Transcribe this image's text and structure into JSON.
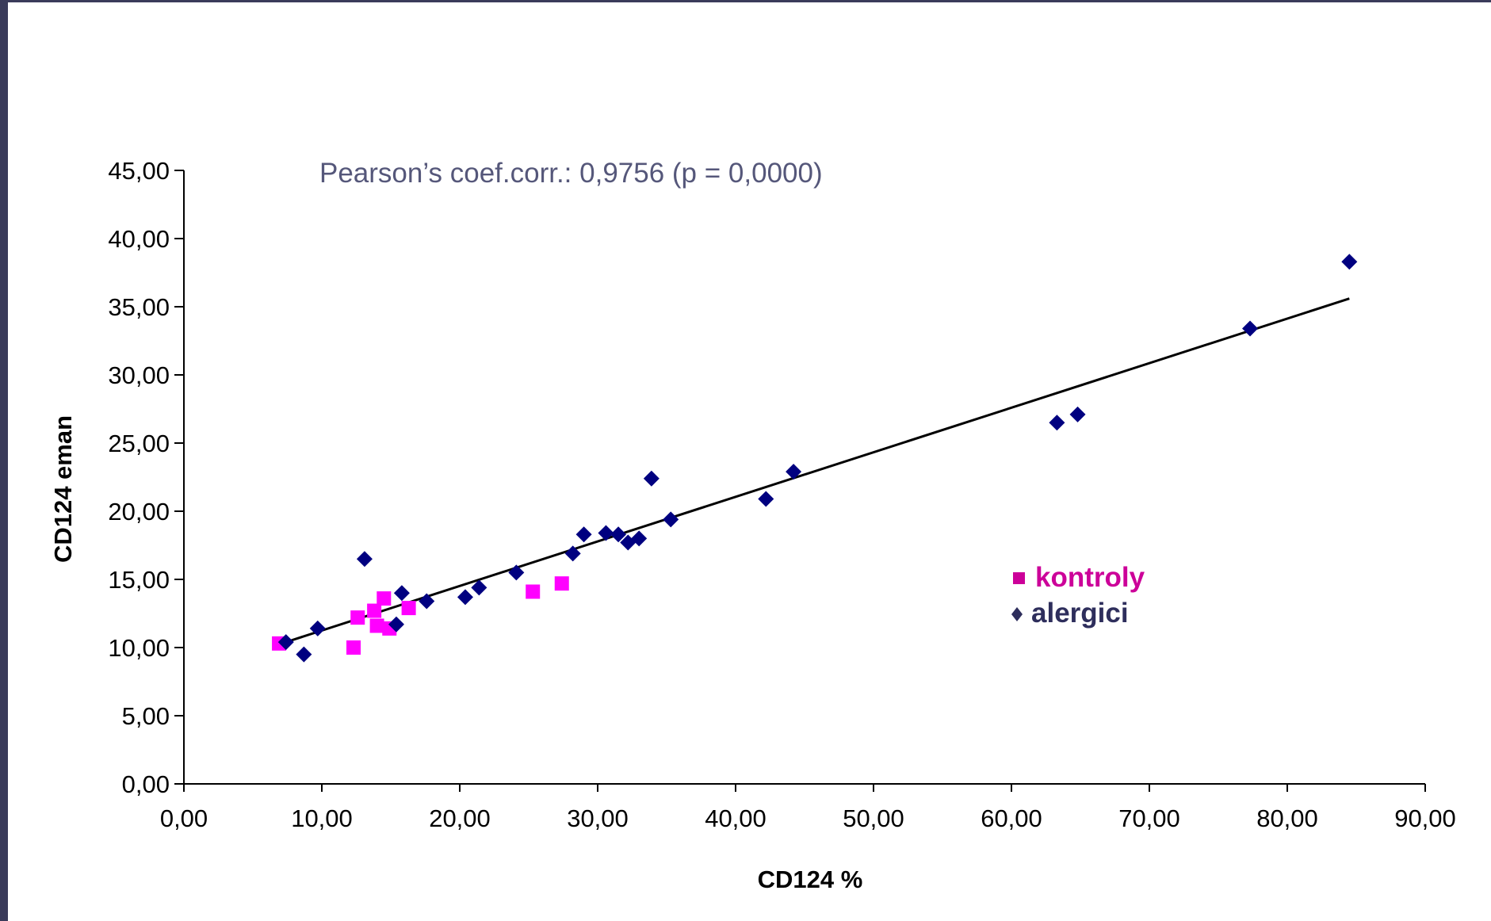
{
  "chart_data": {
    "type": "scatter",
    "annotation": "Pearson’s coef.corr.: 0,9756 (p = 0,0000)",
    "xlabel": "CD124  %",
    "ylabel": "CD124 eman",
    "xlim": [
      0,
      90
    ],
    "ylim": [
      0,
      45
    ],
    "x_ticks": [
      "0,00",
      "10,00",
      "20,00",
      "30,00",
      "40,00",
      "50,00",
      "60,00",
      "70,00",
      "80,00",
      "90,00"
    ],
    "y_ticks": [
      "0,00",
      "5,00",
      "10,00",
      "15,00",
      "20,00",
      "25,00",
      "30,00",
      "35,00",
      "40,00",
      "45,00"
    ],
    "grid": false,
    "legend_position": "right",
    "series": [
      {
        "name": "kontroly",
        "marker": "square",
        "color": "#ff00ff",
        "legend_color": "#cc0099",
        "points": [
          [
            6.9,
            10.3
          ],
          [
            12.3,
            10.0
          ],
          [
            12.6,
            12.2
          ],
          [
            13.8,
            12.7
          ],
          [
            14.0,
            11.6
          ],
          [
            14.5,
            13.6
          ],
          [
            14.9,
            11.4
          ],
          [
            16.3,
            12.9
          ],
          [
            25.3,
            14.1
          ],
          [
            27.4,
            14.7
          ]
        ]
      },
      {
        "name": "alergici",
        "marker": "diamond",
        "color": "#000080",
        "legend_color": "#2e2e5c",
        "points": [
          [
            7.4,
            10.4
          ],
          [
            8.7,
            9.5
          ],
          [
            9.7,
            11.4
          ],
          [
            13.1,
            16.5
          ],
          [
            15.4,
            11.7
          ],
          [
            15.8,
            14.0
          ],
          [
            17.6,
            13.4
          ],
          [
            20.4,
            13.7
          ],
          [
            21.4,
            14.4
          ],
          [
            24.1,
            15.5
          ],
          [
            28.2,
            16.9
          ],
          [
            29.0,
            18.3
          ],
          [
            30.6,
            18.4
          ],
          [
            31.5,
            18.3
          ],
          [
            32.2,
            17.7
          ],
          [
            33.0,
            18.0
          ],
          [
            33.9,
            22.4
          ],
          [
            35.3,
            19.4
          ],
          [
            42.2,
            20.9
          ],
          [
            44.2,
            22.9
          ],
          [
            63.3,
            26.5
          ],
          [
            64.8,
            27.1
          ],
          [
            77.3,
            33.4
          ],
          [
            84.5,
            38.3
          ]
        ]
      }
    ],
    "trendline": {
      "x": [
        7.4,
        84.5
      ],
      "y": [
        10.4,
        35.6
      ],
      "color": "#000000"
    }
  }
}
